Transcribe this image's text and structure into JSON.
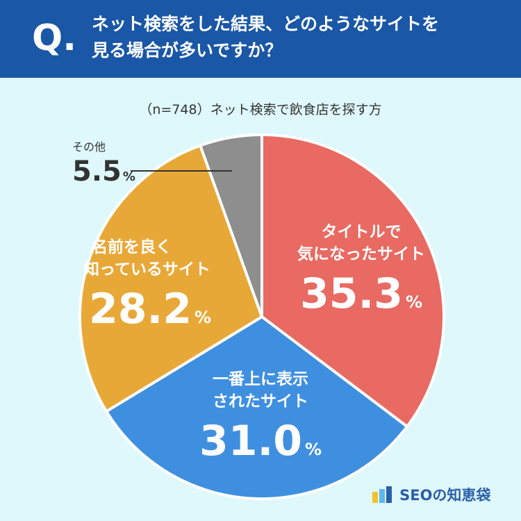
{
  "header": {
    "q_mark": "Q.",
    "question_line1": "ネット検索をした結果、どのようなサイトを",
    "question_line2": "見る場合が多いですか？"
  },
  "subtitle": "（n=748）ネット検索で飲食店を探す方",
  "colors": {
    "header_bg": "#1a57a6",
    "background": "#dff8fb",
    "red": "#e86a62",
    "blue": "#3f8fe0",
    "orange": "#e8a838",
    "gray": "#8e8e8e"
  },
  "chart_data": {
    "type": "pie",
    "start_angle_deg": 0,
    "direction": "clockwise",
    "slices": [
      {
        "label_line1": "タイトルで",
        "label_line2": "気になったサイト",
        "value": 35.3,
        "pct_text": "35.3",
        "color": "#e86a62"
      },
      {
        "label_line1": "一番上に表示",
        "label_line2": "されたサイト",
        "value": 31.0,
        "pct_text": "31.0",
        "color": "#3f8fe0"
      },
      {
        "label_line1": "名前を良く",
        "label_line2": "知っているサイト",
        "value": 28.2,
        "pct_text": "28.2",
        "color": "#e8a838"
      },
      {
        "label_line1": "その他",
        "label_line2": "",
        "value": 5.5,
        "pct_text": "5.5",
        "color": "#8e8e8e"
      }
    ],
    "unit": "%"
  },
  "logo": {
    "text": "SEOの知恵袋"
  }
}
